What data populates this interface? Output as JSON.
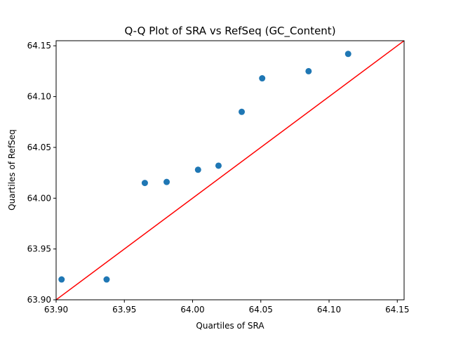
{
  "chart_data": {
    "type": "scatter",
    "title": "Q-Q Plot of SRA vs RefSeq (GC_Content)",
    "xlabel": "Quartiles of SRA",
    "ylabel": "Quartiles of RefSeq",
    "xlim": [
      63.9,
      64.155
    ],
    "ylim": [
      63.9,
      64.155
    ],
    "xticks": [
      63.9,
      63.95,
      64.0,
      64.05,
      64.1,
      64.15
    ],
    "yticks": [
      63.9,
      63.95,
      64.0,
      64.05,
      64.1,
      64.15
    ],
    "xtick_labels": [
      "63.90",
      "63.95",
      "64.00",
      "64.05",
      "64.10",
      "64.15"
    ],
    "ytick_labels": [
      "63.90",
      "63.95",
      "64.00",
      "64.05",
      "64.10",
      "64.15"
    ],
    "grid": false,
    "series": [
      {
        "color": "#1f77b4",
        "points": [
          {
            "x": 63.904,
            "y": 63.92
          },
          {
            "x": 63.937,
            "y": 63.92
          },
          {
            "x": 63.965,
            "y": 64.015
          },
          {
            "x": 63.981,
            "y": 64.016
          },
          {
            "x": 64.004,
            "y": 64.028
          },
          {
            "x": 64.019,
            "y": 64.032
          },
          {
            "x": 64.036,
            "y": 64.085
          },
          {
            "x": 64.051,
            "y": 64.118
          },
          {
            "x": 64.085,
            "y": 64.125
          },
          {
            "x": 64.114,
            "y": 64.142
          }
        ]
      }
    ],
    "reference_line": {
      "type": "identity",
      "color": "#ff0000"
    }
  }
}
